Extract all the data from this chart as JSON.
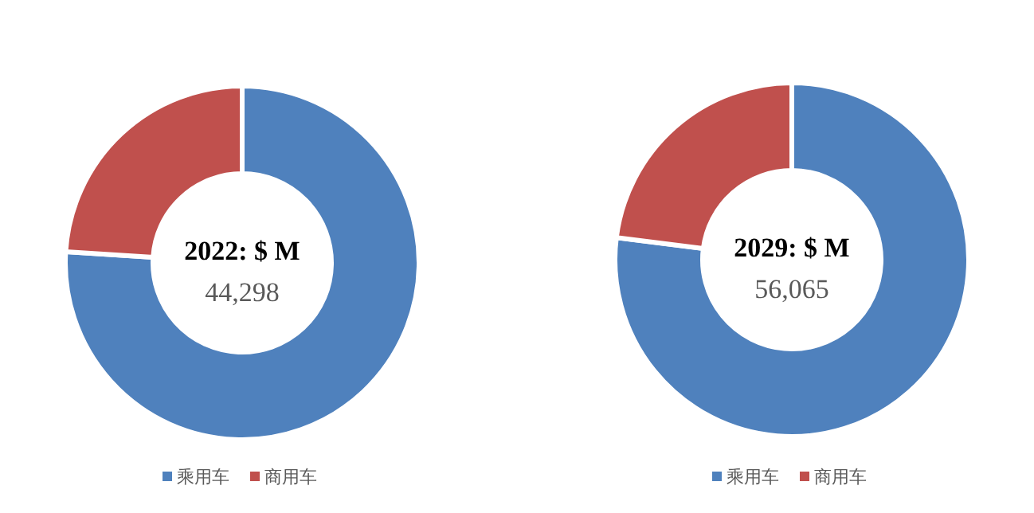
{
  "chart_data": [
    {
      "type": "donut",
      "title": "2022: $ M",
      "annotations": [
        "44,298"
      ],
      "categories": [
        "乘用车",
        "商用车"
      ],
      "values": [
        76,
        24
      ],
      "colors": [
        "#4f81bd",
        "#c0504d"
      ],
      "legend": "bottom"
    },
    {
      "type": "donut",
      "title": "2029: $ M",
      "annotations": [
        "56,065"
      ],
      "categories": [
        "乘用车",
        "商用车"
      ],
      "values": [
        77,
        23
      ],
      "colors": [
        "#4f81bd",
        "#c0504d"
      ],
      "legend": "bottom"
    }
  ]
}
